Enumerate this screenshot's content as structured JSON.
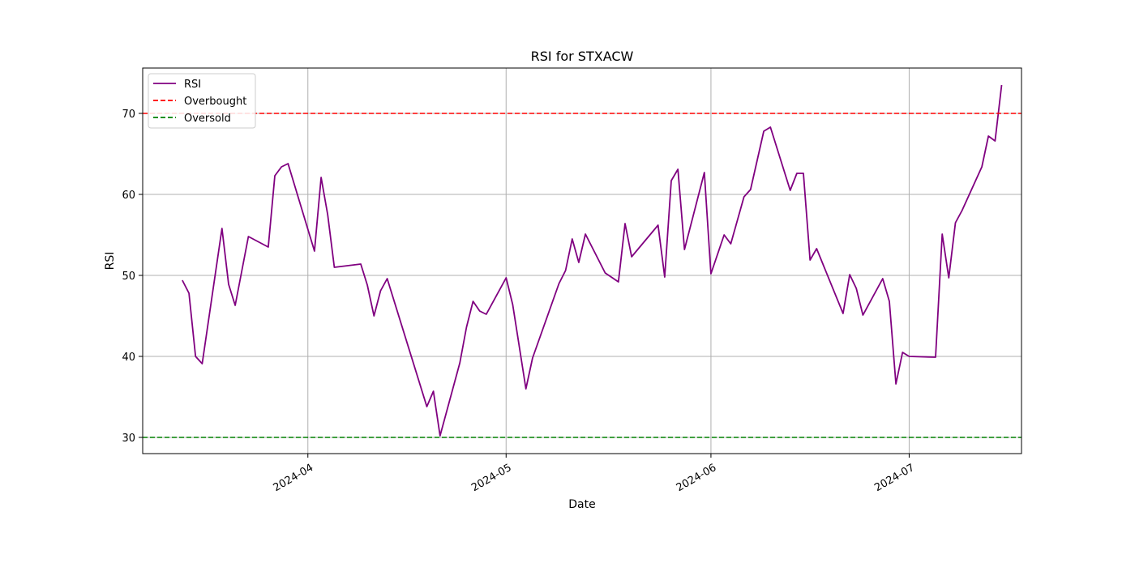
{
  "chart_data": {
    "type": "line",
    "title": "RSI for STXACW",
    "xlabel": "Date",
    "ylabel": "RSI",
    "xlim": [
      "2024-03-07",
      "2024-07-18"
    ],
    "ylim": [
      28,
      75.6
    ],
    "grid": true,
    "legend_position": "top-left",
    "x_ticks": [
      {
        "date": "2024-04-01",
        "label": "2024-04"
      },
      {
        "date": "2024-05-01",
        "label": "2024-05"
      },
      {
        "date": "2024-06-01",
        "label": "2024-06"
      },
      {
        "date": "2024-07-01",
        "label": "2024-07"
      }
    ],
    "y_ticks": [
      30,
      40,
      50,
      60,
      70
    ],
    "series": [
      {
        "name": "RSI",
        "color": "#800080",
        "style": "solid",
        "points": [
          [
            "2024-03-13",
            49.4
          ],
          [
            "2024-03-14",
            47.8
          ],
          [
            "2024-03-15",
            40.0
          ],
          [
            "2024-03-16",
            39.1
          ],
          [
            "2024-03-19",
            55.8
          ],
          [
            "2024-03-20",
            48.9
          ],
          [
            "2024-03-21",
            46.3
          ],
          [
            "2024-03-23",
            54.8
          ],
          [
            "2024-03-26",
            53.5
          ],
          [
            "2024-03-27",
            62.3
          ],
          [
            "2024-03-28",
            63.4
          ],
          [
            "2024-03-29",
            63.8
          ],
          [
            "2024-04-02",
            53.0
          ],
          [
            "2024-04-03",
            62.1
          ],
          [
            "2024-04-04",
            57.5
          ],
          [
            "2024-04-05",
            51.0
          ],
          [
            "2024-04-09",
            51.4
          ],
          [
            "2024-04-10",
            48.8
          ],
          [
            "2024-04-11",
            45.0
          ],
          [
            "2024-04-12",
            48.1
          ],
          [
            "2024-04-13",
            49.6
          ],
          [
            "2024-04-19",
            33.8
          ],
          [
            "2024-04-20",
            35.7
          ],
          [
            "2024-04-21",
            30.2
          ],
          [
            "2024-04-24",
            39.2
          ],
          [
            "2024-04-25",
            43.6
          ],
          [
            "2024-04-26",
            46.8
          ],
          [
            "2024-04-27",
            45.6
          ],
          [
            "2024-04-28",
            45.2
          ],
          [
            "2024-05-01",
            49.7
          ],
          [
            "2024-05-02",
            46.4
          ],
          [
            "2024-05-04",
            36.0
          ],
          [
            "2024-05-05",
            39.8
          ],
          [
            "2024-05-09",
            49.0
          ],
          [
            "2024-05-10",
            50.6
          ],
          [
            "2024-05-11",
            54.5
          ],
          [
            "2024-05-12",
            51.6
          ],
          [
            "2024-05-13",
            55.1
          ],
          [
            "2024-05-16",
            50.3
          ],
          [
            "2024-05-18",
            49.2
          ],
          [
            "2024-05-19",
            56.4
          ],
          [
            "2024-05-20",
            52.3
          ],
          [
            "2024-05-24",
            56.2
          ],
          [
            "2024-05-25",
            49.8
          ],
          [
            "2024-05-26",
            61.7
          ],
          [
            "2024-05-27",
            63.1
          ],
          [
            "2024-05-28",
            53.2
          ],
          [
            "2024-05-31",
            62.7
          ],
          [
            "2024-06-01",
            50.2
          ],
          [
            "2024-06-03",
            55.0
          ],
          [
            "2024-06-04",
            53.9
          ],
          [
            "2024-06-06",
            59.7
          ],
          [
            "2024-06-07",
            60.6
          ],
          [
            "2024-06-09",
            67.8
          ],
          [
            "2024-06-10",
            68.3
          ],
          [
            "2024-06-13",
            60.5
          ],
          [
            "2024-06-14",
            62.6
          ],
          [
            "2024-06-15",
            62.6
          ],
          [
            "2024-06-16",
            51.9
          ],
          [
            "2024-06-17",
            53.3
          ],
          [
            "2024-06-21",
            45.3
          ],
          [
            "2024-06-22",
            50.1
          ],
          [
            "2024-06-23",
            48.4
          ],
          [
            "2024-06-24",
            45.1
          ],
          [
            "2024-06-27",
            49.6
          ],
          [
            "2024-06-28",
            46.8
          ],
          [
            "2024-06-29",
            36.6
          ],
          [
            "2024-06-30",
            40.5
          ],
          [
            "2024-07-01",
            40.0
          ],
          [
            "2024-07-05",
            39.9
          ],
          [
            "2024-07-06",
            55.1
          ],
          [
            "2024-07-07",
            49.7
          ],
          [
            "2024-07-08",
            56.5
          ],
          [
            "2024-07-09",
            58.0
          ],
          [
            "2024-07-12",
            63.4
          ],
          [
            "2024-07-13",
            67.2
          ],
          [
            "2024-07-14",
            66.6
          ],
          [
            "2024-07-15",
            73.5
          ]
        ]
      },
      {
        "name": "Overbought",
        "color": "#ff0000",
        "style": "dashed",
        "constant": 70
      },
      {
        "name": "Oversold",
        "color": "#008000",
        "style": "dashed",
        "constant": 30
      }
    ]
  }
}
